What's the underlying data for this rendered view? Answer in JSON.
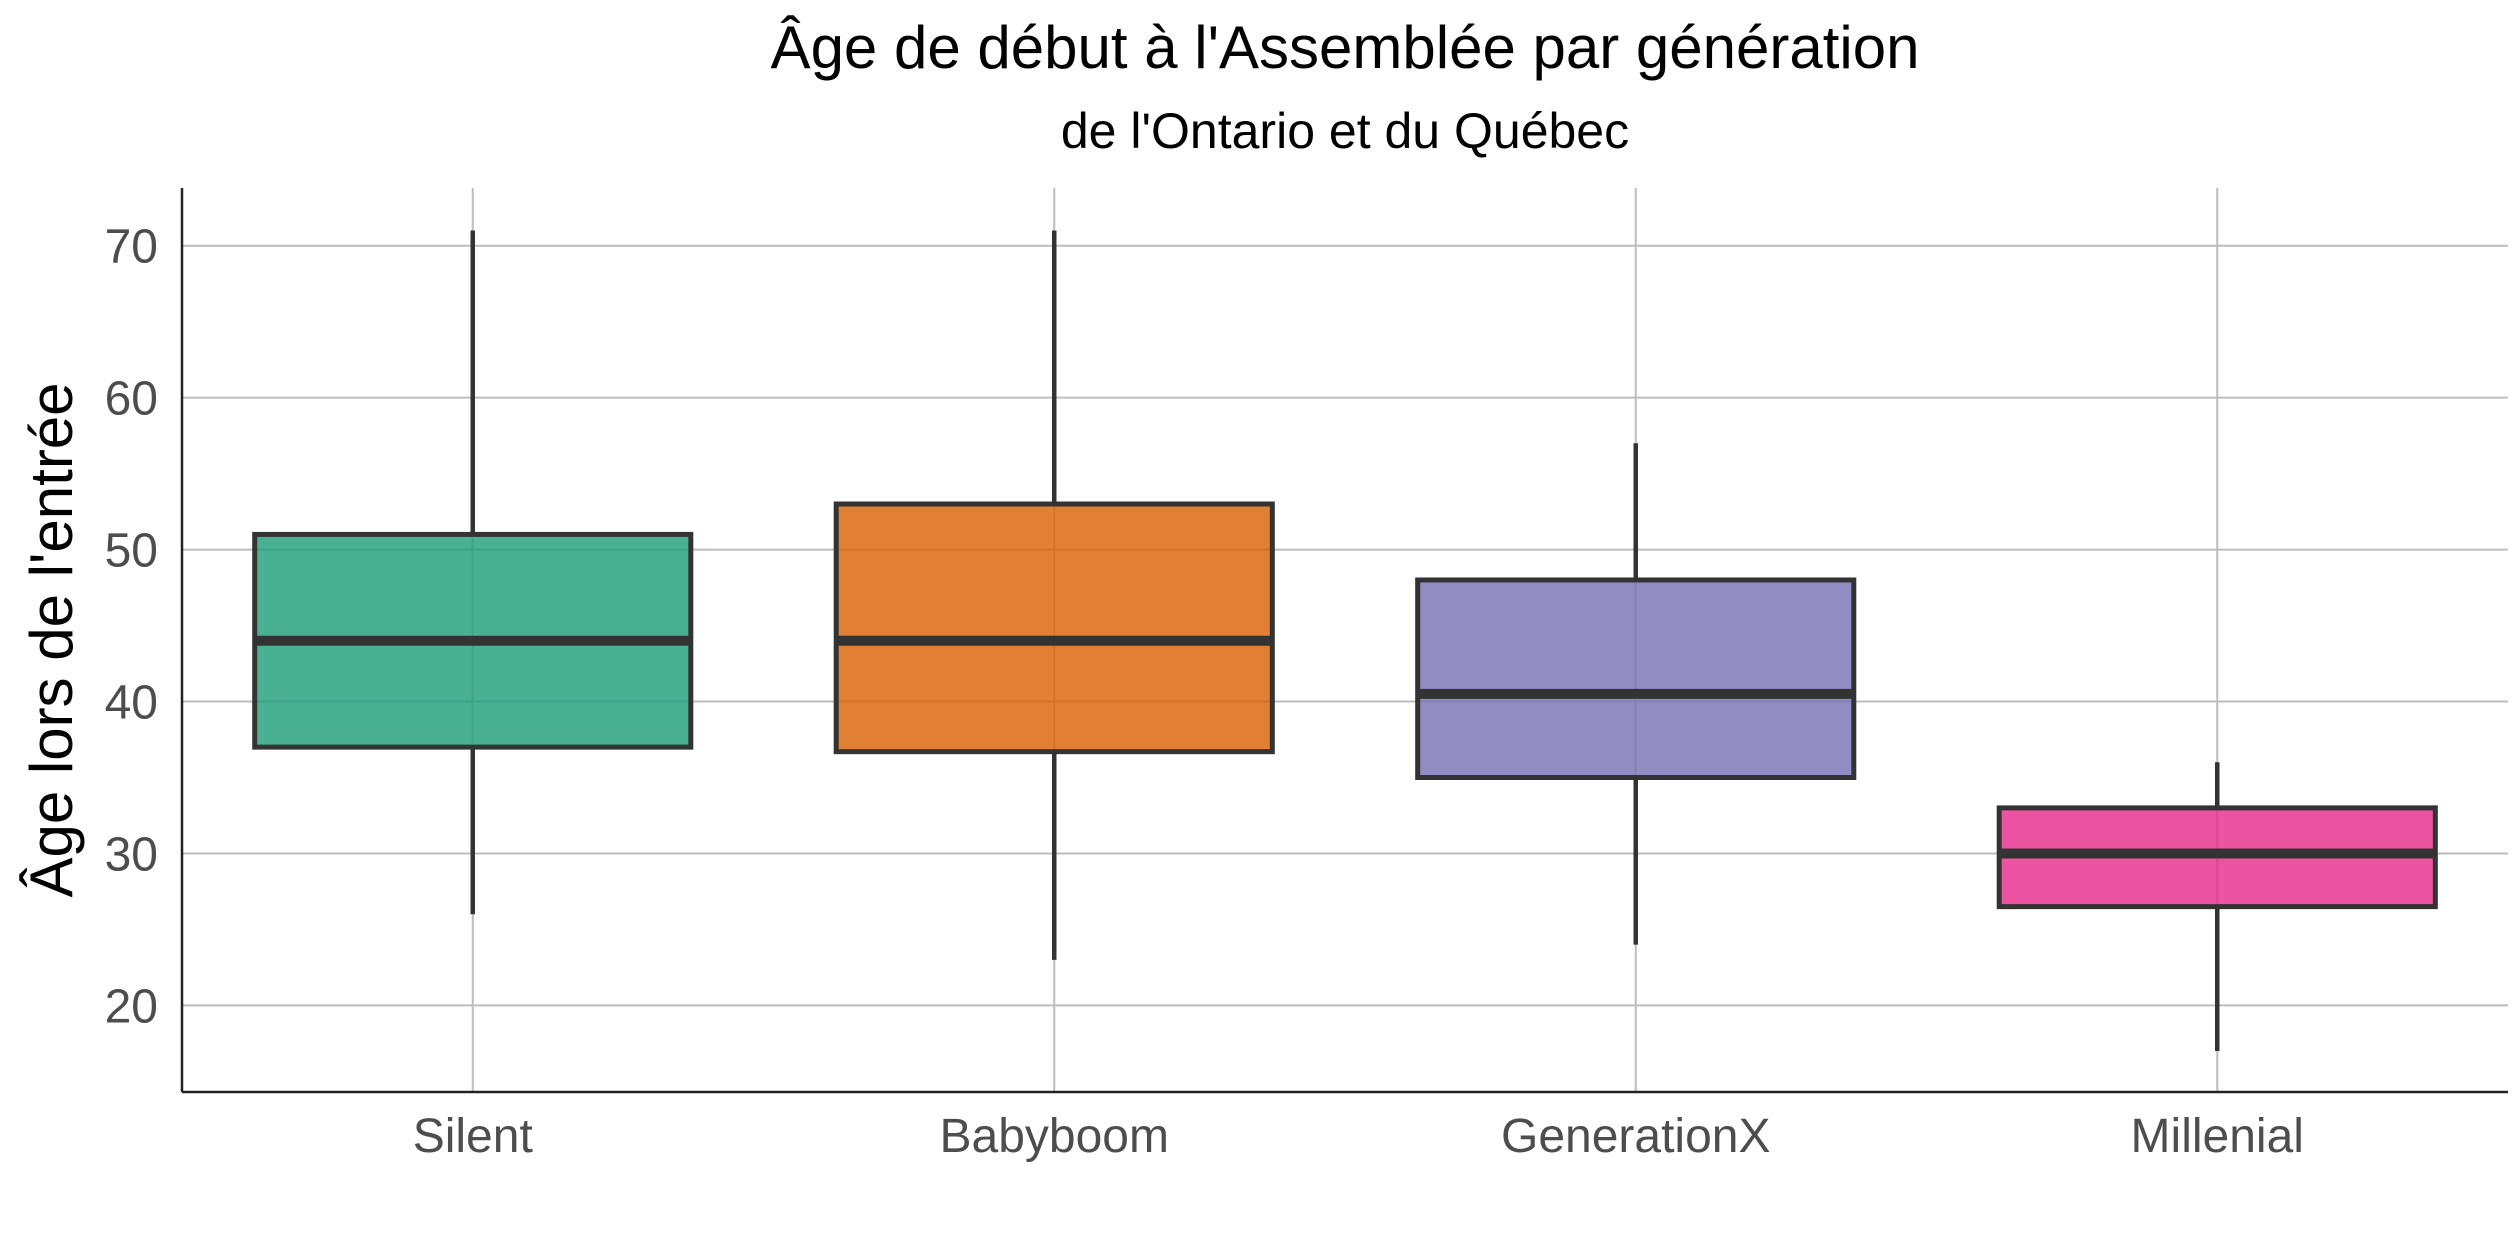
{
  "chart_data": {
    "type": "box",
    "title": "Âge de début à l'Assemblée par génération",
    "subtitle": "de l'Ontario et du Québec",
    "xlabel": "",
    "ylabel": "Âge lors de l'entrée",
    "ylim": [
      14.3,
      73.8
    ],
    "yticks": [
      "20",
      "30",
      "40",
      "50",
      "60",
      "70"
    ],
    "grid": true,
    "categories": [
      "Silent",
      "Babyboom",
      "GenerationX",
      "Millenial"
    ],
    "boxes": [
      {
        "category": "Silent",
        "min": 26,
        "q1": 37,
        "median": 44,
        "q3": 51,
        "max": 71,
        "color": "#1b9e77"
      },
      {
        "category": "Babyboom",
        "min": 23,
        "q1": 36.7,
        "median": 44,
        "q3": 53,
        "max": 71,
        "color": "#d95f02"
      },
      {
        "category": "GenerationX",
        "min": 24,
        "q1": 35,
        "median": 40.5,
        "q3": 48,
        "max": 57,
        "color": "#7570b3"
      },
      {
        "category": "Millenial",
        "min": 17,
        "q1": 26.5,
        "median": 30,
        "q3": 33,
        "max": 36,
        "color": "#e7298a"
      }
    ]
  }
}
